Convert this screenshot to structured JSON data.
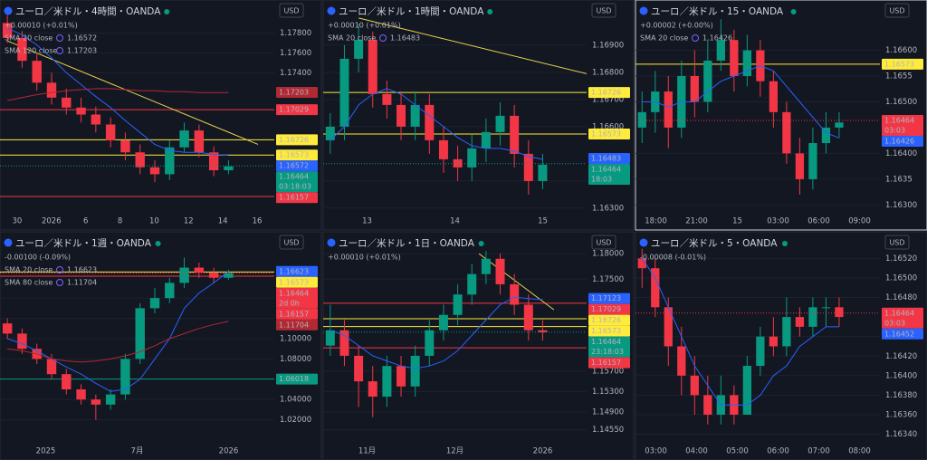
{
  "chart_data": [
    {
      "type": "candlestick",
      "title": "ユーロ／米ドル・4時間・OANDA",
      "change": "+0.00010 (+0.01%)",
      "change_color": "#089981",
      "currency": "USD",
      "x_labels": [
        "30",
        "2026",
        "6",
        "8",
        "10",
        "12",
        "14",
        "16"
      ],
      "ylim": [
        1.1602,
        1.1804
      ],
      "yticks": [
        {
          "value": 1.178,
          "label": "1.17800"
        },
        {
          "value": 1.176,
          "label": "1.17600"
        },
        {
          "value": 1.174,
          "label": "1.17400"
        }
      ],
      "open": [
        1.179,
        1.1775,
        1.1752,
        1.173,
        1.1715,
        1.1705,
        1.1698,
        1.1688,
        1.1672,
        1.166,
        1.1645,
        1.1638,
        1.1665,
        1.1682,
        1.166,
        1.1642
      ],
      "high": [
        1.1798,
        1.1782,
        1.176,
        1.174,
        1.1724,
        1.1715,
        1.1706,
        1.1695,
        1.168,
        1.1668,
        1.1652,
        1.1672,
        1.169,
        1.1688,
        1.1666,
        1.1652
      ],
      "low": [
        1.177,
        1.1745,
        1.1722,
        1.1708,
        1.1698,
        1.169,
        1.168,
        1.1665,
        1.1652,
        1.1638,
        1.163,
        1.1632,
        1.166,
        1.1655,
        1.1636,
        1.1638
      ],
      "close": [
        1.1775,
        1.1752,
        1.173,
        1.1715,
        1.1705,
        1.1698,
        1.1688,
        1.1672,
        1.166,
        1.1645,
        1.1638,
        1.1665,
        1.1682,
        1.166,
        1.1642,
        1.1646
      ],
      "series": [
        {
          "name": "SMA 20 close",
          "color": "#2962ff",
          "last": 1.16572,
          "values": [
            1.1785,
            1.1778,
            1.1768,
            1.1755,
            1.174,
            1.1728,
            1.1716,
            1.1705,
            1.1692,
            1.168,
            1.1668,
            1.1662,
            1.166,
            1.166,
            1.1658,
            1.1657
          ]
        },
        {
          "name": "SMA 120 close",
          "color": "#b22833",
          "last": 1.17203,
          "values": [
            1.1712,
            1.1715,
            1.1718,
            1.172,
            1.1722,
            1.1723,
            1.1724,
            1.1724,
            1.1723,
            1.1722,
            1.1722,
            1.1721,
            1.1721,
            1.172,
            1.172,
            1.172
          ]
        }
      ],
      "levels": [
        {
          "value": 1.17029,
          "color": "#f23645"
        },
        {
          "value": 1.16726,
          "color": "#ffeb3b"
        },
        {
          "value": 1.16573,
          "color": "#ffeb3b"
        },
        {
          "value": 1.16157,
          "color": "#f23645"
        }
      ],
      "price": {
        "value": 1.16464,
        "countdown": "03:18:03",
        "color": "#089981"
      },
      "trendline": {
        "x": [
          0,
          17
        ],
        "y": [
          1.1772,
          1.1668
        ],
        "color": "#e8d44d"
      }
    },
    {
      "type": "candlestick",
      "title": "ユーロ／米ドル・1時間・OANDA",
      "change": "+0.00010 (+0.01%)",
      "change_color": "#089981",
      "currency": "USD",
      "x_labels": [
        "13",
        "14",
        "15"
      ],
      "ylim": [
        1.16293,
        1.17033
      ],
      "yticks": [
        {
          "value": 1.169,
          "label": "1.16900"
        },
        {
          "value": 1.168,
          "label": "1.16800"
        },
        {
          "value": 1.167,
          "label": "1.16700"
        },
        {
          "value": 1.166,
          "label": "1.16600"
        },
        {
          "value": 1.164,
          "label": "1.16400"
        },
        {
          "value": 1.163,
          "label": "1.16300"
        }
      ],
      "open": [
        1.1655,
        1.166,
        1.1685,
        1.1692,
        1.1672,
        1.1668,
        1.166,
        1.1668,
        1.1655,
        1.1648,
        1.1645,
        1.1652,
        1.1658,
        1.1664,
        1.165,
        1.164
      ],
      "high": [
        1.1665,
        1.169,
        1.1698,
        1.1695,
        1.1677,
        1.1673,
        1.1673,
        1.1672,
        1.166,
        1.1653,
        1.1657,
        1.1663,
        1.1669,
        1.1668,
        1.1655,
        1.165
      ],
      "low": [
        1.165,
        1.1655,
        1.168,
        1.1667,
        1.1663,
        1.1655,
        1.1655,
        1.165,
        1.1643,
        1.164,
        1.164,
        1.1647,
        1.1653,
        1.1645,
        1.1635,
        1.1637
      ],
      "close": [
        1.166,
        1.1685,
        1.1692,
        1.1672,
        1.1668,
        1.166,
        1.1668,
        1.1655,
        1.1648,
        1.1645,
        1.1652,
        1.1658,
        1.1664,
        1.165,
        1.164,
        1.1646
      ],
      "series": [
        {
          "name": "SMA 20 close",
          "color": "#2962ff",
          "last": 1.16483,
          "values": [
            1.1655,
            1.166,
            1.1668,
            1.1672,
            1.1674,
            1.1672,
            1.1668,
            1.1664,
            1.166,
            1.1656,
            1.1653,
            1.1652,
            1.1652,
            1.1651,
            1.1649,
            1.1648
          ]
        }
      ],
      "levels": [
        {
          "value": 1.16726,
          "color": "#ffeb3b"
        },
        {
          "value": 1.16573,
          "color": "#ffeb3b"
        }
      ],
      "price": {
        "value": 1.16464,
        "countdown": "18:03",
        "color": "#089981"
      },
      "trendline": {
        "x": [
          2,
          18.5
        ],
        "y": [
          1.17,
          1.1679
        ],
        "color": "#e8d44d"
      }
    },
    {
      "type": "candlestick",
      "title": "ユーロ／米ドル・15・OANDA",
      "change": "+0.00002 (+0.00%)",
      "change_color": "#f23645",
      "currency": "USD",
      "x_labels": [
        "18:00",
        "21:00",
        "15",
        "03:00",
        "06:00",
        "09:00"
      ],
      "ylim": [
        1.1629,
        1.1668
      ],
      "yticks": [
        {
          "value": 1.166,
          "label": "1.16600"
        },
        1.1655,
        {
          "value": 1.165,
          "label": "1.16500"
        },
        {
          "value": 1.164,
          "label": "1.16400"
        },
        1.1635,
        {
          "value": 1.163,
          "label": "1.16300"
        }
      ],
      "open": [
        1.1645,
        1.1648,
        1.1652,
        1.1645,
        1.1655,
        1.165,
        1.1658,
        1.1662,
        1.1655,
        1.166,
        1.1654,
        1.1648,
        1.164,
        1.1635,
        1.1642,
        1.1645
      ],
      "high": [
        1.1652,
        1.1656,
        1.1655,
        1.1658,
        1.166,
        1.1662,
        1.1666,
        1.1664,
        1.1663,
        1.1662,
        1.1656,
        1.165,
        1.1643,
        1.1645,
        1.1648,
        1.1648
      ],
      "low": [
        1.1642,
        1.1644,
        1.1641,
        1.1643,
        1.1647,
        1.1648,
        1.1656,
        1.1652,
        1.1653,
        1.1651,
        1.1645,
        1.1638,
        1.1632,
        1.1633,
        1.164,
        1.1643
      ],
      "close": [
        1.1648,
        1.1652,
        1.1645,
        1.1655,
        1.165,
        1.1658,
        1.1662,
        1.1655,
        1.166,
        1.1654,
        1.1648,
        1.164,
        1.1635,
        1.1642,
        1.1645,
        1.1646
      ],
      "series": [
        {
          "name": "SMA 20 close",
          "color": "#2962ff",
          "last": 1.16426,
          "values": [
            1.165,
            1.165,
            1.1649,
            1.165,
            1.165,
            1.1652,
            1.1654,
            1.1655,
            1.1656,
            1.1657,
            1.1656,
            1.1653,
            1.165,
            1.1647,
            1.1644,
            1.1643
          ]
        }
      ],
      "levels": [
        {
          "value": 1.16573,
          "color": "#ffeb3b"
        }
      ],
      "price": {
        "value": 1.16464,
        "countdown": "03:03",
        "color": "#f23645"
      }
    },
    {
      "type": "candlestick",
      "title": "ユーロ／米ドル・1週・OANDA",
      "change": "-0.00100 (-0.09%)",
      "change_color": "#f23645",
      "currency": "USD",
      "x_labels": [
        "2025",
        "7月",
        "2026"
      ],
      "ylim": [
        1.0,
        1.1964
      ],
      "yticks": [
        {
          "value": 1.14,
          "label": "1.14000"
        },
        {
          "value": 1.12,
          "label": "1.12000"
        },
        {
          "value": 1.1,
          "label": "1.10000"
        },
        {
          "value": 1.08,
          "label": "1.08000"
        },
        {
          "value": 1.04,
          "label": "1.04000"
        },
        {
          "value": 1.02,
          "label": "1.02000"
        }
      ],
      "open": [
        1.115,
        1.105,
        1.09,
        1.08,
        1.065,
        1.05,
        1.04,
        1.035,
        1.045,
        1.08,
        1.13,
        1.14,
        1.155,
        1.17,
        1.165,
        1.16
      ],
      "high": [
        1.12,
        1.11,
        1.095,
        1.085,
        1.07,
        1.055,
        1.045,
        1.05,
        1.085,
        1.135,
        1.15,
        1.16,
        1.18,
        1.175,
        1.17,
        1.168
      ],
      "low": [
        1.1,
        1.085,
        1.075,
        1.06,
        1.045,
        1.035,
        1.02,
        1.03,
        1.04,
        1.075,
        1.125,
        1.135,
        1.15,
        1.16,
        1.155,
        1.158
      ],
      "close": [
        1.105,
        1.09,
        1.08,
        1.065,
        1.05,
        1.04,
        1.035,
        1.045,
        1.08,
        1.13,
        1.14,
        1.155,
        1.17,
        1.165,
        1.16,
        1.1646
      ],
      "series": [
        {
          "name": "SMA 20 close",
          "color": "#2962ff",
          "last": 1.16623,
          "values": [
            1.1,
            1.095,
            1.088,
            1.08,
            1.072,
            1.065,
            1.056,
            1.048,
            1.05,
            1.06,
            1.08,
            1.1,
            1.13,
            1.145,
            1.155,
            1.1662
          ]
        },
        {
          "name": "SMA 80 close",
          "color": "#b22833",
          "last": 1.11704,
          "values": [
            1.09,
            1.088,
            1.085,
            1.08,
            1.078,
            1.077,
            1.078,
            1.08,
            1.083,
            1.087,
            1.093,
            1.1,
            1.105,
            1.11,
            1.114,
            1.117
          ]
        }
      ],
      "levels": [
        {
          "value": 1.16573,
          "color": "#ffeb3b"
        },
        {
          "value": 1.16157,
          "color": "#f23645"
        },
        {
          "value": 1.06018,
          "color": "#089981"
        }
      ],
      "price": {
        "value": 1.16464,
        "countdown": "2d 0h",
        "color": "#f23645"
      }
    },
    {
      "type": "candlestick",
      "title": "ユーロ／米ドル・1日・OANDA",
      "change": "+0.00010 (+0.01%)",
      "change_color": "#089981",
      "currency": "USD",
      "x_labels": [
        "11月",
        "12月",
        "2026"
      ],
      "ylim": [
        1.1435,
        1.1825
      ],
      "yticks": [
        {
          "value": 1.18,
          "label": "1.18000"
        },
        {
          "value": 1.175,
          "label": "1.17500"
        },
        {
          "value": 1.157,
          "label": "1.15700"
        },
        {
          "value": 1.153,
          "label": "1.15300"
        },
        {
          "value": 1.149,
          "label": "1.14900"
        },
        {
          "value": 1.1455,
          "label": "1.14550"
        }
      ],
      "open": [
        1.162,
        1.165,
        1.16,
        1.155,
        1.152,
        1.158,
        1.154,
        1.16,
        1.165,
        1.168,
        1.172,
        1.176,
        1.179,
        1.174,
        1.17,
        1.165
      ],
      "high": [
        1.17,
        1.167,
        1.162,
        1.158,
        1.16,
        1.16,
        1.162,
        1.167,
        1.17,
        1.174,
        1.178,
        1.1805,
        1.18,
        1.176,
        1.172,
        1.167
      ],
      "low": [
        1.16,
        1.158,
        1.15,
        1.148,
        1.15,
        1.152,
        1.152,
        1.158,
        1.163,
        1.166,
        1.17,
        1.174,
        1.172,
        1.168,
        1.163,
        1.163
      ],
      "close": [
        1.165,
        1.16,
        1.155,
        1.152,
        1.158,
        1.154,
        1.16,
        1.165,
        1.168,
        1.172,
        1.176,
        1.179,
        1.174,
        1.17,
        1.165,
        1.1646
      ],
      "series": [
        {
          "color": "#2962ff",
          "last": 1.17123,
          "values": [
            1.165,
            1.164,
            1.162,
            1.16,
            1.159,
            1.158,
            1.1575,
            1.158,
            1.159,
            1.161,
            1.164,
            1.167,
            1.17,
            1.1715,
            1.1712,
            1.171
          ]
        }
      ],
      "levels": [
        {
          "value": 1.17029,
          "color": "#f23645"
        },
        {
          "value": 1.16726,
          "color": "#ffeb3b"
        },
        {
          "value": 1.16573,
          "color": "#ffeb3b"
        },
        {
          "value": 1.16157,
          "color": "#f23645"
        }
      ],
      "price": {
        "value": 1.16464,
        "countdown": "23:18:03",
        "color": "#089981"
      },
      "trendline": {
        "x": [
          10.5,
          15.8
        ],
        "y": [
          1.18,
          1.169
        ],
        "color": "#e8d44d"
      }
    },
    {
      "type": "candlestick",
      "title": "ユーロ／米ドル・5・OANDA",
      "change": "-0.00008 (-0.01%)",
      "change_color": "#f23645",
      "currency": "USD",
      "x_labels": [
        "03:00",
        "04:00",
        "05:00",
        "06:00",
        "07:00",
        "08:00"
      ],
      "ylim": [
        1.16334,
        1.16538
      ],
      "yticks": [
        {
          "value": 1.1652,
          "label": "1.16520"
        },
        {
          "value": 1.165,
          "label": "1.16500"
        },
        {
          "value": 1.1648,
          "label": "1.16480"
        },
        {
          "value": 1.1644,
          "label": "1.16440"
        },
        {
          "value": 1.1642,
          "label": "1.16420"
        },
        {
          "value": 1.164,
          "label": "1.16400"
        },
        {
          "value": 1.1638,
          "label": "1.16380"
        },
        {
          "value": 1.1636,
          "label": "1.16360"
        },
        {
          "value": 1.1634,
          "label": "1.16340"
        }
      ],
      "open": [
        1.1652,
        1.1651,
        1.1647,
        1.1643,
        1.164,
        1.1638,
        1.1636,
        1.1638,
        1.1636,
        1.1641,
        1.1644,
        1.1643,
        1.1646,
        1.1645,
        1.1647,
        1.1647
      ],
      "high": [
        1.1653,
        1.1652,
        1.1648,
        1.1645,
        1.1642,
        1.164,
        1.164,
        1.1639,
        1.1642,
        1.1645,
        1.1646,
        1.1648,
        1.1647,
        1.1648,
        1.1648,
        1.1648
      ],
      "low": [
        1.1649,
        1.1646,
        1.1641,
        1.1638,
        1.1636,
        1.1635,
        1.1635,
        1.1635,
        1.1636,
        1.164,
        1.1642,
        1.1642,
        1.1644,
        1.1644,
        1.1645,
        1.1645
      ],
      "close": [
        1.1651,
        1.1647,
        1.1643,
        1.164,
        1.1638,
        1.1636,
        1.1638,
        1.1636,
        1.1641,
        1.1644,
        1.1643,
        1.1646,
        1.1645,
        1.1647,
        1.1647,
        1.1646
      ],
      "series": [
        {
          "color": "#2962ff",
          "last": 1.16452,
          "values": [
            1.1652,
            1.165,
            1.1647,
            1.1644,
            1.1641,
            1.1639,
            1.1637,
            1.1637,
            1.1637,
            1.1638,
            1.164,
            1.1641,
            1.1643,
            1.1644,
            1.1645,
            1.1645
          ]
        }
      ],
      "levels": [],
      "price": {
        "value": 1.16464,
        "countdown": "03:03",
        "color": "#f23645"
      }
    }
  ]
}
